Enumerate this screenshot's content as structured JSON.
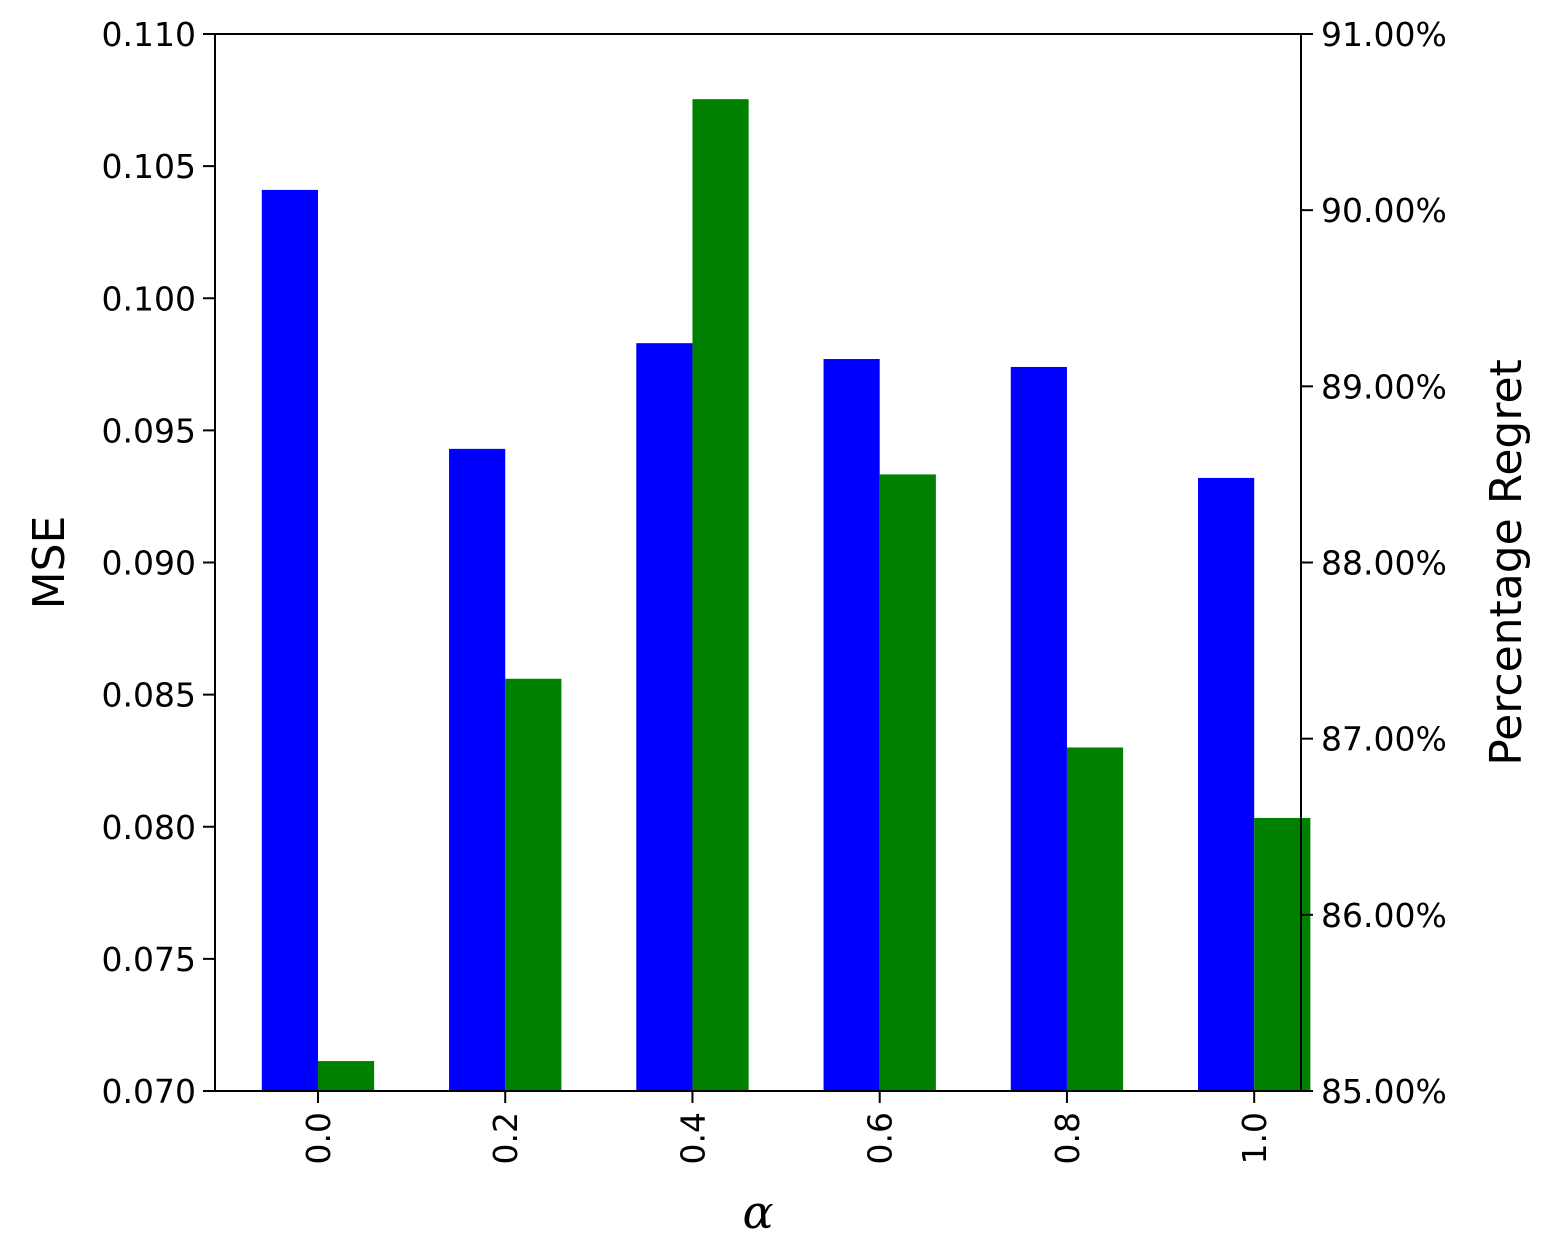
{
  "chart_data": {
    "type": "bar",
    "xlabel": "α",
    "categories": [
      "0.0",
      "0.2",
      "0.4",
      "0.6",
      "0.8",
      "1.0"
    ],
    "left_axis": {
      "label": "MSE",
      "ylim": [
        0.07,
        0.11
      ],
      "ticks": [
        "0.070",
        "0.075",
        "0.080",
        "0.085",
        "0.090",
        "0.095",
        "0.100",
        "0.105",
        "0.110"
      ]
    },
    "right_axis": {
      "label": "Percentage Regret",
      "ylim": [
        85.0,
        91.0
      ],
      "ticks": [
        "85.00%",
        "86.00%",
        "87.00%",
        "88.00%",
        "89.00%",
        "90.00%",
        "91.00%"
      ]
    },
    "series": [
      {
        "axis": "left",
        "color": "#0000ff",
        "values": [
          0.1041,
          0.0943,
          0.0983,
          0.0977,
          0.0974,
          0.0932
        ]
      },
      {
        "axis": "right",
        "color": "#008000",
        "values": [
          85.17,
          87.34,
          90.63,
          88.5,
          86.95,
          86.55
        ]
      }
    ],
    "grid": false,
    "legend": "none"
  }
}
